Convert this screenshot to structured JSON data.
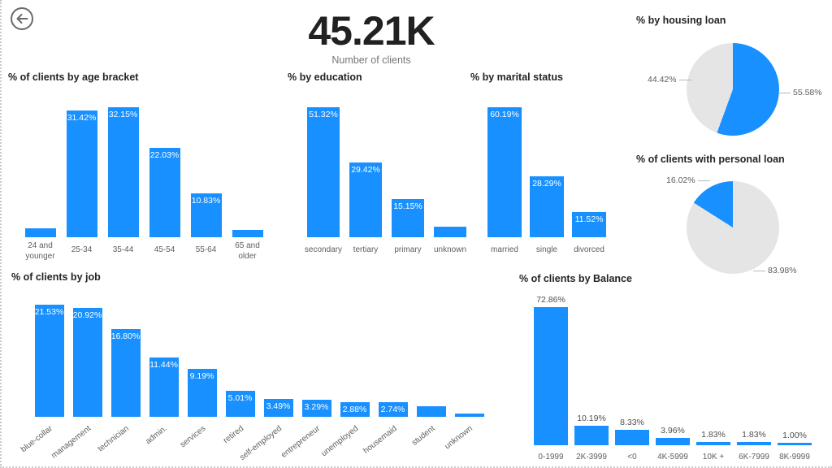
{
  "page": {
    "background": "#FFFFFF",
    "accent_blue": "#1890FF",
    "pie_gray": "#E5E5E5",
    "label_gray": "#605E5C"
  },
  "kpi": {
    "value": "45.21K",
    "caption": "Number of clients"
  },
  "chart_data": [
    {
      "key": "age_bracket",
      "type": "bar",
      "title": "% of clients by age bracket",
      "categories": [
        "24 and\nyounger",
        "25-34",
        "35-44",
        "45-54",
        "55-64",
        "65 and\nolder"
      ],
      "values": [
        2.2,
        31.42,
        32.15,
        22.03,
        10.83,
        1.9
      ],
      "data_labels": [
        "",
        "31.42%",
        "32.15%",
        "22.03%",
        "10.83%",
        ""
      ],
      "label_position": "inside",
      "bar_color": "#1890FF",
      "ylim": [
        0,
        32.15
      ],
      "gridlines": false,
      "legend": "none"
    },
    {
      "key": "education",
      "type": "bar",
      "title": "% by education",
      "categories": [
        "secondary",
        "tertiary",
        "primary",
        "unknown"
      ],
      "values": [
        51.32,
        29.42,
        15.15,
        4.11
      ],
      "data_labels": [
        "51.32%",
        "29.42%",
        "15.15%",
        ""
      ],
      "label_position": "inside",
      "bar_color": "#1890FF",
      "ylim": [
        0,
        51.32
      ],
      "gridlines": false,
      "legend": "none"
    },
    {
      "key": "marital_status",
      "type": "bar",
      "title": "% by marital status",
      "categories": [
        "married",
        "single",
        "divorced"
      ],
      "values": [
        60.19,
        28.29,
        11.52
      ],
      "data_labels": [
        "60.19%",
        "28.29%",
        "11.52%"
      ],
      "label_position": "inside",
      "bar_color": "#1890FF",
      "ylim": [
        0,
        60.19
      ],
      "gridlines": false,
      "legend": "none"
    },
    {
      "key": "housing_loan",
      "type": "pie",
      "title": "% by housing loan",
      "slices": [
        {
          "label": "55.58%",
          "value": 55.58,
          "color": "#1890FF",
          "label_side": "right"
        },
        {
          "label": "44.42%",
          "value": 44.42,
          "color": "#E5E5E5",
          "label_side": "left"
        }
      ],
      "start_angle_deg": 0,
      "direction": "clockwise",
      "legend": "none"
    },
    {
      "key": "personal_loan",
      "type": "pie",
      "title": "% of clients with personal loan",
      "slices": [
        {
          "label": "83.98%",
          "value": 83.98,
          "color": "#E5E5E5",
          "label_side": "bottom-right"
        },
        {
          "label": "16.02%",
          "value": 16.02,
          "color": "#1890FF",
          "label_side": "top-left"
        }
      ],
      "start_angle_deg": 0,
      "direction": "clockwise",
      "legend": "none"
    },
    {
      "key": "job",
      "type": "bar",
      "title": "% of clients by job",
      "categories": [
        "blue-collar",
        "management",
        "technician",
        "admin.",
        "services",
        "retired",
        "self-employed",
        "entrepreneur",
        "unemployed",
        "housemaid",
        "student",
        "unknown"
      ],
      "values": [
        21.53,
        20.92,
        16.8,
        11.44,
        9.19,
        5.01,
        3.49,
        3.29,
        2.88,
        2.74,
        2.07,
        0.64
      ],
      "data_labels": [
        "21.53%",
        "20.92%",
        "16.80%",
        "11.44%",
        "9.19%",
        "5.01%",
        "3.49%",
        "3.29%",
        "2.88%",
        "2.74%",
        "",
        ""
      ],
      "label_position": "inside",
      "rotated_labels": true,
      "bar_color": "#1890FF",
      "ylim": [
        0,
        21.53
      ],
      "gridlines": false,
      "legend": "none"
    },
    {
      "key": "balance",
      "type": "bar",
      "title": "% of clients by Balance",
      "categories": [
        "0-1999",
        "2K-3999",
        "<0",
        "4K-5999",
        "10K +",
        "6K-7999",
        "8K-9999"
      ],
      "values": [
        72.86,
        10.19,
        8.33,
        3.96,
        1.83,
        1.83,
        1.0
      ],
      "data_labels": [
        "72.86%",
        "10.19%",
        "8.33%",
        "3.96%",
        "1.83%",
        "1.83%",
        "1.00%"
      ],
      "label_position": "outside",
      "bar_color": "#1890FF",
      "ylim": [
        0,
        72.86
      ],
      "gridlines": false,
      "legend": "none"
    }
  ]
}
